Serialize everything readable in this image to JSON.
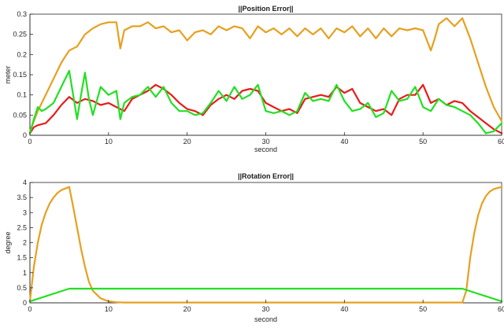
{
  "chart_data": [
    {
      "type": "line",
      "title": "||Position Error||",
      "xlabel": "second",
      "ylabel": "meter",
      "xlim": [
        0,
        60
      ],
      "ylim": [
        0,
        0.3
      ],
      "xticks": [
        0,
        10,
        20,
        30,
        40,
        50,
        60
      ],
      "yticks": [
        0,
        0.05,
        0.1,
        0.15,
        0.2,
        0.25,
        0.3
      ],
      "xtick_labels": [
        "0",
        "10",
        "20",
        "30",
        "40",
        "50",
        "60"
      ],
      "ytick_labels": [
        "0",
        "0.05",
        "0.1",
        "0.15",
        "0.2",
        "0.25",
        "0.3"
      ],
      "grid": false,
      "series": [
        {
          "color": "#e6a020",
          "x": [
            0,
            1,
            2,
            3,
            4,
            5,
            6,
            7,
            8,
            9,
            10,
            11,
            11.5,
            12,
            13,
            14,
            15,
            16,
            17,
            18,
            19,
            20,
            21,
            22,
            23,
            24,
            25,
            26,
            27,
            28,
            29,
            30,
            31,
            32,
            33,
            34,
            35,
            36,
            37,
            38,
            39,
            40,
            41,
            42,
            43,
            44,
            45,
            46,
            47,
            48,
            49,
            50,
            51,
            51.5,
            52,
            53,
            54,
            55,
            56,
            57,
            58,
            59,
            60
          ],
          "y": [
            0.01,
            0.06,
            0.1,
            0.14,
            0.18,
            0.21,
            0.22,
            0.25,
            0.265,
            0.275,
            0.28,
            0.28,
            0.215,
            0.26,
            0.27,
            0.27,
            0.28,
            0.265,
            0.27,
            0.255,
            0.26,
            0.235,
            0.255,
            0.26,
            0.25,
            0.27,
            0.26,
            0.27,
            0.265,
            0.24,
            0.27,
            0.255,
            0.265,
            0.25,
            0.265,
            0.245,
            0.265,
            0.25,
            0.265,
            0.24,
            0.265,
            0.255,
            0.27,
            0.245,
            0.265,
            0.24,
            0.265,
            0.245,
            0.265,
            0.26,
            0.265,
            0.26,
            0.21,
            0.24,
            0.275,
            0.29,
            0.27,
            0.29,
            0.24,
            0.18,
            0.12,
            0.07,
            0.035
          ]
        },
        {
          "color": "#e81c1c",
          "x": [
            0,
            0.5,
            1,
            2,
            3,
            4,
            5,
            6,
            7,
            8,
            9,
            10,
            11,
            12,
            13,
            14,
            15,
            16,
            17,
            18,
            19,
            20,
            21,
            22,
            23,
            24,
            25,
            26,
            27,
            28,
            29,
            30,
            31,
            32,
            33,
            34,
            35,
            36,
            37,
            38,
            39,
            40,
            41,
            42,
            43,
            44,
            45,
            46,
            47,
            48,
            49,
            50,
            51,
            52,
            53,
            54,
            55,
            56,
            57,
            58,
            59,
            60
          ],
          "y": [
            0.005,
            0.02,
            0.025,
            0.03,
            0.05,
            0.075,
            0.095,
            0.08,
            0.09,
            0.085,
            0.075,
            0.08,
            0.07,
            0.06,
            0.09,
            0.1,
            0.11,
            0.125,
            0.115,
            0.1,
            0.08,
            0.065,
            0.06,
            0.05,
            0.075,
            0.09,
            0.1,
            0.09,
            0.11,
            0.115,
            0.11,
            0.08,
            0.07,
            0.06,
            0.065,
            0.055,
            0.09,
            0.095,
            0.1,
            0.095,
            0.12,
            0.105,
            0.115,
            0.08,
            0.07,
            0.06,
            0.065,
            0.05,
            0.09,
            0.1,
            0.1,
            0.125,
            0.08,
            0.09,
            0.075,
            0.085,
            0.08,
            0.06,
            0.045,
            0.03,
            0.015,
            0.005
          ]
        },
        {
          "color": "#22e022",
          "x": [
            0,
            0.5,
            1,
            1.5,
            2,
            3,
            4,
            5,
            5.5,
            6,
            6.5,
            7,
            7.5,
            8,
            9,
            10,
            11,
            11.5,
            12,
            13,
            14,
            15,
            16,
            17,
            18,
            19,
            20,
            21,
            22,
            23,
            24,
            25,
            26,
            27,
            28,
            29,
            30,
            31,
            32,
            33,
            34,
            35,
            36,
            37,
            38,
            39,
            40,
            41,
            42,
            43,
            44,
            45,
            46,
            47,
            48,
            49,
            50,
            51,
            52,
            53,
            54,
            55,
            56,
            57,
            58,
            59,
            60
          ],
          "y": [
            0.005,
            0.04,
            0.07,
            0.06,
            0.065,
            0.08,
            0.12,
            0.16,
            0.1,
            0.04,
            0.1,
            0.155,
            0.09,
            0.05,
            0.12,
            0.1,
            0.11,
            0.04,
            0.08,
            0.095,
            0.1,
            0.12,
            0.095,
            0.12,
            0.08,
            0.06,
            0.06,
            0.05,
            0.055,
            0.08,
            0.11,
            0.085,
            0.12,
            0.09,
            0.1,
            0.125,
            0.06,
            0.055,
            0.06,
            0.05,
            0.06,
            0.105,
            0.085,
            0.09,
            0.085,
            0.125,
            0.085,
            0.06,
            0.065,
            0.08,
            0.045,
            0.055,
            0.11,
            0.085,
            0.09,
            0.12,
            0.07,
            0.06,
            0.09,
            0.075,
            0.07,
            0.06,
            0.05,
            0.03,
            0.005,
            0.01,
            0.03
          ]
        }
      ]
    },
    {
      "type": "line",
      "title": "||Rotation Error||",
      "xlabel": "second",
      "ylabel": "degree",
      "xlim": [
        0,
        60
      ],
      "ylim": [
        0,
        4
      ],
      "xticks": [
        0,
        10,
        20,
        30,
        40,
        50,
        60
      ],
      "yticks": [
        0,
        0.5,
        1,
        1.5,
        2,
        2.5,
        3,
        3.5,
        4
      ],
      "xtick_labels": [
        "0",
        "10",
        "20",
        "30",
        "40",
        "50",
        "60"
      ],
      "ytick_labels": [
        "0",
        "0.5",
        "1",
        "1.5",
        "2",
        "2.5",
        "3",
        "3.5",
        "4"
      ],
      "grid": false,
      "series": [
        {
          "color": "#e6a020",
          "x": [
            0,
            0.5,
            1,
            1.5,
            2,
            2.5,
            3,
            3.5,
            4,
            4.5,
            5,
            5.5,
            6,
            6.5,
            7,
            7.5,
            8,
            9,
            10,
            11,
            12,
            14,
            20,
            30,
            40,
            50,
            55,
            55.5,
            56,
            56.5,
            57,
            57.5,
            58,
            58.5,
            59,
            59.5,
            60
          ],
          "y": [
            0.05,
            1.2,
            2.0,
            2.6,
            3.0,
            3.3,
            3.5,
            3.65,
            3.75,
            3.8,
            3.85,
            3.2,
            2.5,
            1.8,
            1.2,
            0.7,
            0.4,
            0.15,
            0.05,
            0.02,
            0.01,
            0.01,
            0.01,
            0.01,
            0.01,
            0.01,
            0.01,
            0.4,
            1.5,
            2.3,
            2.9,
            3.3,
            3.55,
            3.7,
            3.78,
            3.82,
            3.85
          ]
        },
        {
          "color": "#22e022",
          "x": [
            0,
            5,
            10,
            20,
            30,
            40,
            50,
            55,
            60
          ],
          "y": [
            0.05,
            0.47,
            0.47,
            0.47,
            0.47,
            0.47,
            0.47,
            0.47,
            0.05
          ]
        }
      ]
    }
  ]
}
